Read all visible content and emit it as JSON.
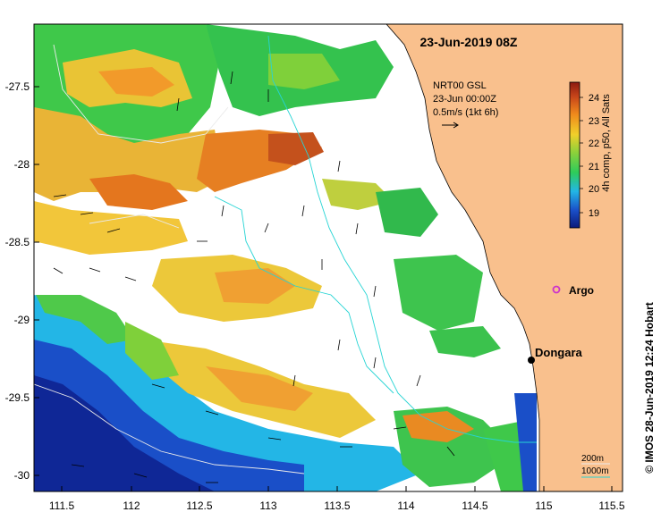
{
  "title": "23-Jun-2019 08Z",
  "annotation": {
    "line1": "NRT00 GSL",
    "line2": "23-Jun 00:00Z",
    "line3": "0.5m/s (1kt 6h)"
  },
  "colorbar": {
    "label": "4h comp, p50, All Sats",
    "ticks": [
      "19",
      "20",
      "21",
      "22",
      "23",
      "24"
    ],
    "colors": [
      "#0b1a7a",
      "#1a4fc8",
      "#23b6e6",
      "#2ecc5a",
      "#8fd13a",
      "#f0d02a",
      "#f08a1c",
      "#c8461a",
      "#8c1a10"
    ]
  },
  "places": [
    {
      "name": "Argo"
    },
    {
      "name": "Dongara"
    }
  ],
  "credit": "© IMOS 28-Jun-2019 12:24 Hobart",
  "depth_legend": {
    "a": "200m",
    "b": "1000m"
  },
  "axes": {
    "x_ticks": [
      "111.5",
      "112",
      "112.5",
      "113",
      "113.5",
      "114",
      "114.5",
      "115",
      "115.5"
    ],
    "y_ticks": [
      "-27.5",
      "-28",
      "-28.5",
      "-29",
      "-29.5",
      "-30"
    ]
  },
  "colors": {
    "land": "#f9c08d",
    "bathymetry": "#26d4d4",
    "argo": "#cc33cc"
  }
}
